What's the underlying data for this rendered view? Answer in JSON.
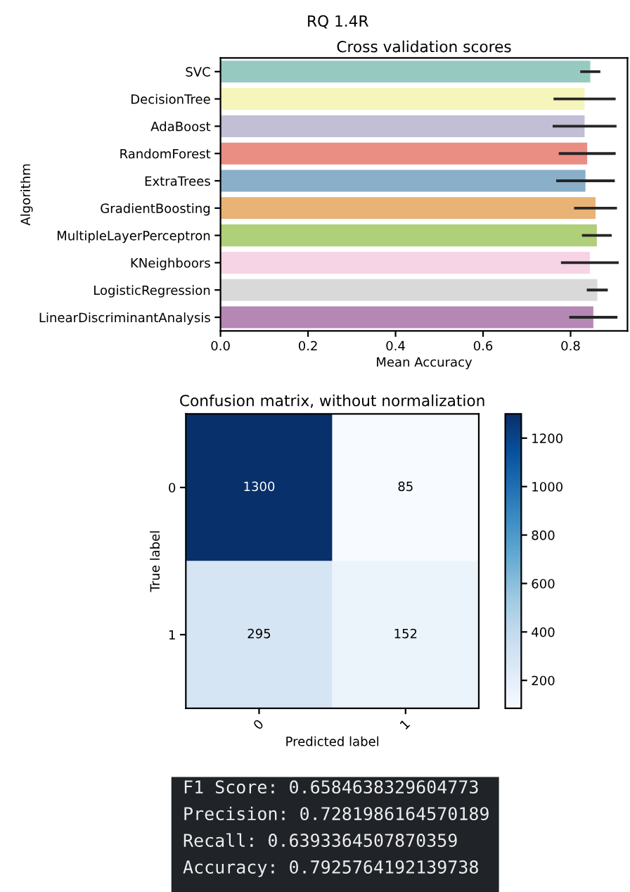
{
  "chart_data": [
    {
      "type": "bar",
      "orientation": "horizontal",
      "title": "RQ 1.4R",
      "subtitle": "Cross validation scores",
      "xlabel": "Mean Accuracy",
      "ylabel": "Algorithm",
      "categories": [
        "SVC",
        "DecisionTree",
        "AdaBoost",
        "RandomForest",
        "ExtraTrees",
        "GradientBoosting",
        "MultipleLayerPerceptron",
        "KNeighboors",
        "LogisticRegression",
        "LinearDiscriminantAnalysis"
      ],
      "values": [
        0.845,
        0.832,
        0.832,
        0.838,
        0.834,
        0.857,
        0.86,
        0.844,
        0.861,
        0.852
      ],
      "errors": [
        0.023,
        0.071,
        0.073,
        0.065,
        0.067,
        0.049,
        0.034,
        0.066,
        0.024,
        0.055
      ],
      "colors": [
        "#96cac1",
        "#f5f5bc",
        "#c1bed6",
        "#ea8d83",
        "#8aafc8",
        "#e9b375",
        "#afcf78",
        "#f6d3e5",
        "#d9d9d9",
        "#b587b5"
      ],
      "xlim": [
        0,
        0.93
      ],
      "xticks": [
        {
          "value": 0,
          "label": "0.0"
        },
        0.2,
        0.4,
        0.6,
        0.8
      ]
    },
    {
      "type": "heatmap",
      "title": "Confusion matrix, without normalization",
      "xlabel": "Predicted label",
      "ylabel": "True label",
      "categories": [
        "0",
        "1"
      ],
      "y_categories": [
        "0",
        "1"
      ],
      "cells": [
        [
          1300,
          85
        ],
        [
          295,
          152
        ]
      ],
      "clim": [
        85,
        1300
      ],
      "cticks": [
        200,
        400,
        600,
        800,
        1000,
        1200
      ],
      "data_labels": true
    },
    {
      "type": "other",
      "annotations": [
        "F1 Score: 0.6584638329604773",
        "Precision: 0.7281986164570189",
        "Recall: 0.6393364507870359",
        "Accuracy: 0.7925764192139738"
      ]
    }
  ]
}
